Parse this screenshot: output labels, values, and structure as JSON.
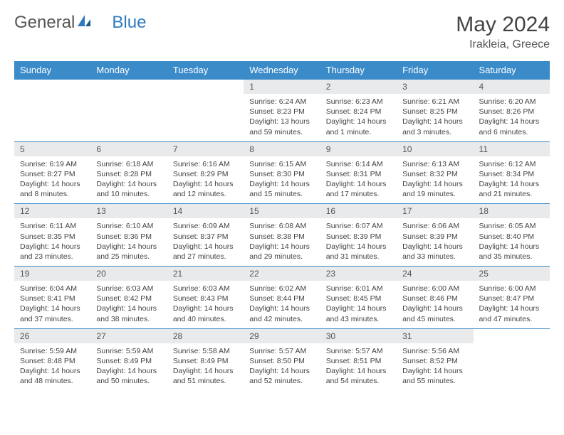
{
  "brand": {
    "part1": "General",
    "part2": "Blue"
  },
  "title": "May 2024",
  "location": "Irakleia, Greece",
  "colors": {
    "header_bg": "#3b8bc9",
    "header_text": "#ffffff",
    "daynum_bg": "#e9eaeb",
    "border": "#3b8bc9",
    "brand_gray": "#555555",
    "brand_blue": "#2f7bbf"
  },
  "weekdays": [
    "Sunday",
    "Monday",
    "Tuesday",
    "Wednesday",
    "Thursday",
    "Friday",
    "Saturday"
  ],
  "weeks": [
    [
      {
        "day": "",
        "sunrise": "",
        "sunset": "",
        "daylight": ""
      },
      {
        "day": "",
        "sunrise": "",
        "sunset": "",
        "daylight": ""
      },
      {
        "day": "",
        "sunrise": "",
        "sunset": "",
        "daylight": ""
      },
      {
        "day": "1",
        "sunrise": "Sunrise: 6:24 AM",
        "sunset": "Sunset: 8:23 PM",
        "daylight": "Daylight: 13 hours and 59 minutes."
      },
      {
        "day": "2",
        "sunrise": "Sunrise: 6:23 AM",
        "sunset": "Sunset: 8:24 PM",
        "daylight": "Daylight: 14 hours and 1 minute."
      },
      {
        "day": "3",
        "sunrise": "Sunrise: 6:21 AM",
        "sunset": "Sunset: 8:25 PM",
        "daylight": "Daylight: 14 hours and 3 minutes."
      },
      {
        "day": "4",
        "sunrise": "Sunrise: 6:20 AM",
        "sunset": "Sunset: 8:26 PM",
        "daylight": "Daylight: 14 hours and 6 minutes."
      }
    ],
    [
      {
        "day": "5",
        "sunrise": "Sunrise: 6:19 AM",
        "sunset": "Sunset: 8:27 PM",
        "daylight": "Daylight: 14 hours and 8 minutes."
      },
      {
        "day": "6",
        "sunrise": "Sunrise: 6:18 AM",
        "sunset": "Sunset: 8:28 PM",
        "daylight": "Daylight: 14 hours and 10 minutes."
      },
      {
        "day": "7",
        "sunrise": "Sunrise: 6:16 AM",
        "sunset": "Sunset: 8:29 PM",
        "daylight": "Daylight: 14 hours and 12 minutes."
      },
      {
        "day": "8",
        "sunrise": "Sunrise: 6:15 AM",
        "sunset": "Sunset: 8:30 PM",
        "daylight": "Daylight: 14 hours and 15 minutes."
      },
      {
        "day": "9",
        "sunrise": "Sunrise: 6:14 AM",
        "sunset": "Sunset: 8:31 PM",
        "daylight": "Daylight: 14 hours and 17 minutes."
      },
      {
        "day": "10",
        "sunrise": "Sunrise: 6:13 AM",
        "sunset": "Sunset: 8:32 PM",
        "daylight": "Daylight: 14 hours and 19 minutes."
      },
      {
        "day": "11",
        "sunrise": "Sunrise: 6:12 AM",
        "sunset": "Sunset: 8:34 PM",
        "daylight": "Daylight: 14 hours and 21 minutes."
      }
    ],
    [
      {
        "day": "12",
        "sunrise": "Sunrise: 6:11 AM",
        "sunset": "Sunset: 8:35 PM",
        "daylight": "Daylight: 14 hours and 23 minutes."
      },
      {
        "day": "13",
        "sunrise": "Sunrise: 6:10 AM",
        "sunset": "Sunset: 8:36 PM",
        "daylight": "Daylight: 14 hours and 25 minutes."
      },
      {
        "day": "14",
        "sunrise": "Sunrise: 6:09 AM",
        "sunset": "Sunset: 8:37 PM",
        "daylight": "Daylight: 14 hours and 27 minutes."
      },
      {
        "day": "15",
        "sunrise": "Sunrise: 6:08 AM",
        "sunset": "Sunset: 8:38 PM",
        "daylight": "Daylight: 14 hours and 29 minutes."
      },
      {
        "day": "16",
        "sunrise": "Sunrise: 6:07 AM",
        "sunset": "Sunset: 8:39 PM",
        "daylight": "Daylight: 14 hours and 31 minutes."
      },
      {
        "day": "17",
        "sunrise": "Sunrise: 6:06 AM",
        "sunset": "Sunset: 8:39 PM",
        "daylight": "Daylight: 14 hours and 33 minutes."
      },
      {
        "day": "18",
        "sunrise": "Sunrise: 6:05 AM",
        "sunset": "Sunset: 8:40 PM",
        "daylight": "Daylight: 14 hours and 35 minutes."
      }
    ],
    [
      {
        "day": "19",
        "sunrise": "Sunrise: 6:04 AM",
        "sunset": "Sunset: 8:41 PM",
        "daylight": "Daylight: 14 hours and 37 minutes."
      },
      {
        "day": "20",
        "sunrise": "Sunrise: 6:03 AM",
        "sunset": "Sunset: 8:42 PM",
        "daylight": "Daylight: 14 hours and 38 minutes."
      },
      {
        "day": "21",
        "sunrise": "Sunrise: 6:03 AM",
        "sunset": "Sunset: 8:43 PM",
        "daylight": "Daylight: 14 hours and 40 minutes."
      },
      {
        "day": "22",
        "sunrise": "Sunrise: 6:02 AM",
        "sunset": "Sunset: 8:44 PM",
        "daylight": "Daylight: 14 hours and 42 minutes."
      },
      {
        "day": "23",
        "sunrise": "Sunrise: 6:01 AM",
        "sunset": "Sunset: 8:45 PM",
        "daylight": "Daylight: 14 hours and 43 minutes."
      },
      {
        "day": "24",
        "sunrise": "Sunrise: 6:00 AM",
        "sunset": "Sunset: 8:46 PM",
        "daylight": "Daylight: 14 hours and 45 minutes."
      },
      {
        "day": "25",
        "sunrise": "Sunrise: 6:00 AM",
        "sunset": "Sunset: 8:47 PM",
        "daylight": "Daylight: 14 hours and 47 minutes."
      }
    ],
    [
      {
        "day": "26",
        "sunrise": "Sunrise: 5:59 AM",
        "sunset": "Sunset: 8:48 PM",
        "daylight": "Daylight: 14 hours and 48 minutes."
      },
      {
        "day": "27",
        "sunrise": "Sunrise: 5:59 AM",
        "sunset": "Sunset: 8:49 PM",
        "daylight": "Daylight: 14 hours and 50 minutes."
      },
      {
        "day": "28",
        "sunrise": "Sunrise: 5:58 AM",
        "sunset": "Sunset: 8:49 PM",
        "daylight": "Daylight: 14 hours and 51 minutes."
      },
      {
        "day": "29",
        "sunrise": "Sunrise: 5:57 AM",
        "sunset": "Sunset: 8:50 PM",
        "daylight": "Daylight: 14 hours and 52 minutes."
      },
      {
        "day": "30",
        "sunrise": "Sunrise: 5:57 AM",
        "sunset": "Sunset: 8:51 PM",
        "daylight": "Daylight: 14 hours and 54 minutes."
      },
      {
        "day": "31",
        "sunrise": "Sunrise: 5:56 AM",
        "sunset": "Sunset: 8:52 PM",
        "daylight": "Daylight: 14 hours and 55 minutes."
      },
      {
        "day": "",
        "sunrise": "",
        "sunset": "",
        "daylight": ""
      }
    ]
  ]
}
